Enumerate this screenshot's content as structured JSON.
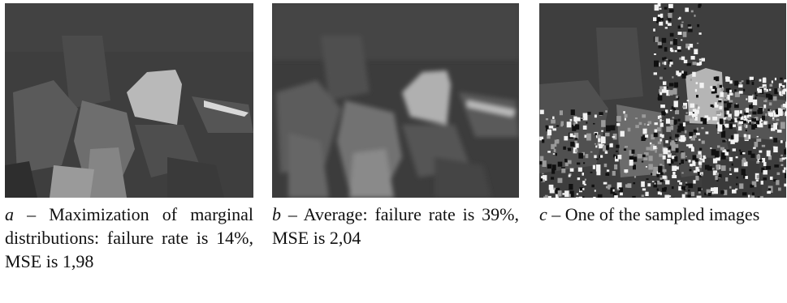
{
  "panels": [
    {
      "letter": "a",
      "caption": " – Maximization of marginal distributions: failure rate is 14%, MSE is 1,98",
      "image_style": "smooth-disparity-map"
    },
    {
      "letter": "b",
      "caption": " – Average: failure rate is 39%, MSE is 2,04",
      "image_style": "blurred-disparity-map"
    },
    {
      "letter": "c",
      "caption": " – One of the sampled images",
      "image_style": "noisy-disparity-map"
    }
  ]
}
